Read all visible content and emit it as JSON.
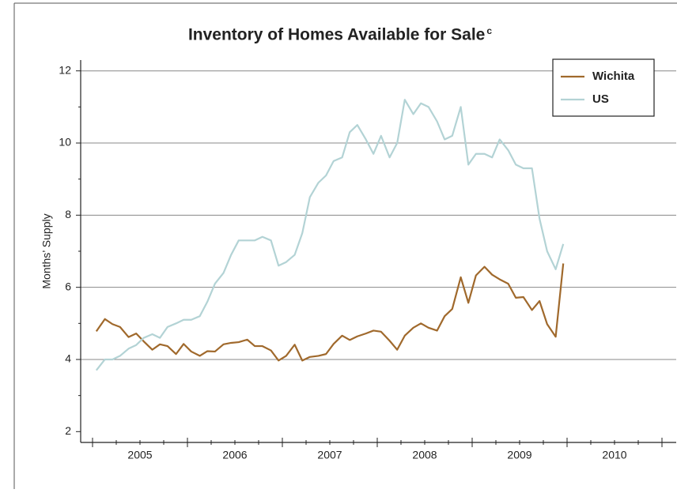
{
  "chart_data": {
    "type": "line",
    "title": "Inventory of Homes Available for Sale",
    "title_note": "c",
    "ylabel": "Months’ Supply",
    "x": [
      2005.04,
      2005.13,
      2005.21,
      2005.29,
      2005.38,
      2005.46,
      2005.54,
      2005.63,
      2005.71,
      2005.79,
      2005.88,
      2005.96,
      2006.04,
      2006.13,
      2006.21,
      2006.29,
      2006.38,
      2006.46,
      2006.54,
      2006.63,
      2006.71,
      2006.79,
      2006.88,
      2006.96,
      2007.04,
      2007.13,
      2007.21,
      2007.29,
      2007.38,
      2007.46,
      2007.54,
      2007.63,
      2007.71,
      2007.79,
      2007.88,
      2007.96,
      2008.04,
      2008.13,
      2008.21,
      2008.29,
      2008.38,
      2008.46,
      2008.54,
      2008.63,
      2008.71,
      2008.79,
      2008.88,
      2008.96,
      2009.04,
      2009.13,
      2009.21,
      2009.29,
      2009.38,
      2009.46,
      2009.54,
      2009.63,
      2009.71,
      2009.79,
      2009.88,
      2009.96
    ],
    "series": [
      {
        "name": "Wichita",
        "color": "#a0692c",
        "values": [
          4.78,
          5.12,
          4.98,
          4.9,
          4.62,
          4.72,
          4.5,
          4.27,
          4.42,
          4.37,
          4.15,
          4.43,
          4.22,
          4.1,
          4.23,
          4.22,
          4.42,
          4.46,
          4.48,
          4.55,
          4.37,
          4.37,
          4.25,
          3.97,
          4.1,
          4.41,
          3.97,
          4.07,
          4.1,
          4.15,
          4.43,
          4.66,
          4.54,
          4.64,
          4.72,
          4.8,
          4.77,
          4.52,
          4.27,
          4.66,
          4.88,
          5.0,
          4.88,
          4.8,
          5.2,
          5.4,
          6.28,
          5.57,
          6.33,
          6.57,
          6.35,
          6.22,
          6.1,
          5.71,
          5.73,
          5.37,
          5.62,
          4.98,
          4.63,
          6.66
        ]
      },
      {
        "name": "US",
        "color": "#b3d3d5",
        "values": [
          3.7,
          4.0,
          4.0,
          4.1,
          4.3,
          4.4,
          4.6,
          4.7,
          4.6,
          4.9,
          5.0,
          5.1,
          5.1,
          5.2,
          5.6,
          6.1,
          6.4,
          6.9,
          7.3,
          7.3,
          7.3,
          7.4,
          7.3,
          6.6,
          6.7,
          6.9,
          7.5,
          8.5,
          8.9,
          9.1,
          9.5,
          9.6,
          10.3,
          10.5,
          10.1,
          9.7,
          10.2,
          9.6,
          10.0,
          11.2,
          10.8,
          11.1,
          11.0,
          10.6,
          10.1,
          10.2,
          11.0,
          9.4,
          9.7,
          9.7,
          9.6,
          10.1,
          9.8,
          9.4,
          9.3,
          9.3,
          7.9,
          7.0,
          6.5,
          7.2
        ]
      }
    ],
    "xlim": [
      2004.875,
      2011.15
    ],
    "xticks": [
      {
        "value": 2005.5,
        "label": "2005"
      },
      {
        "value": 2006.5,
        "label": "2006"
      },
      {
        "value": 2007.5,
        "label": "2007"
      },
      {
        "value": 2008.5,
        "label": "2008"
      },
      {
        "value": 2009.5,
        "label": "2009"
      },
      {
        "value": 2010.5,
        "label": "2010"
      }
    ],
    "xmajor": [
      2005,
      2006,
      2007,
      2008,
      2009,
      2010,
      2011
    ],
    "ylim": [
      1.7,
      12.3
    ],
    "yticks": [
      2,
      4,
      6,
      8,
      10,
      12
    ],
    "yminor": [
      3,
      5,
      7,
      9,
      11
    ],
    "ygrid": [
      4,
      6,
      8,
      10,
      12
    ],
    "legend": "top-right"
  }
}
